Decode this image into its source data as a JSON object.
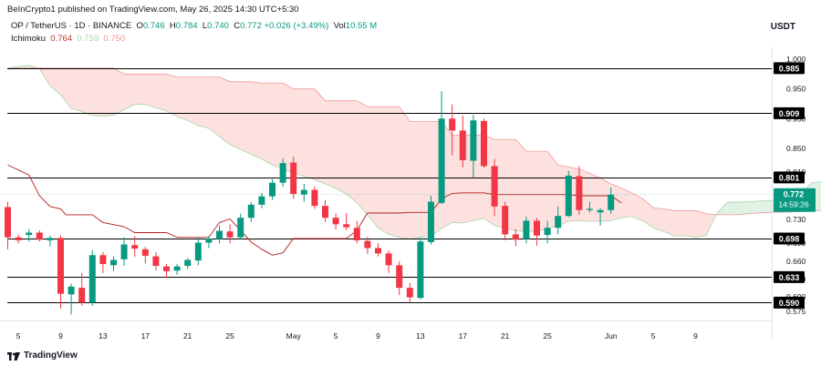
{
  "header": {
    "published": "BeInCrypto1 published on TradingView.com, May 26, 2025 14:30 UTC+5:30",
    "currency": "USDT",
    "symbol": "OP / TetherUS · 1D · BINANCE",
    "ohlc": [
      {
        "key": "O",
        "value": "0.746"
      },
      {
        "key": "H",
        "value": "0.784"
      },
      {
        "key": "L",
        "value": "0.740"
      },
      {
        "key": "C",
        "value": "0.772"
      }
    ],
    "change": "+0.026 (+3.49%)",
    "vol_label": "Vol",
    "vol_value": "10.55 M",
    "ichimoku_label": "Ichimoku",
    "ichimoku_values": [
      "0.764",
      "0.759",
      "0.750"
    ]
  },
  "footer": {
    "brand": "TradingView"
  },
  "colors": {
    "up": "#089981",
    "down": "#f23645",
    "cloud_bear": "#fde1df",
    "cloud_bull": "#dff2e4",
    "span_a": "#a5d6a7",
    "span_b": "#ef9a9a",
    "base_line": "#b71c1c",
    "hline": "#000000"
  },
  "chart_data": {
    "type": "candlestick",
    "y_range": [
      0.56,
      1.02
    ],
    "y_ticks": [
      "1.000",
      "0.950",
      "0.900",
      "0.850",
      "0.810",
      "0.770",
      "0.730",
      "0.690",
      "0.660",
      "0.630",
      "0.600",
      "0.575"
    ],
    "x_ticks": [
      "5",
      "9",
      "13",
      "17",
      "21",
      "25",
      "May",
      "5",
      "9",
      "13",
      "17",
      "21",
      "25",
      "Jun",
      "5",
      "9"
    ],
    "levels": [
      {
        "label": "0.985",
        "value": 0.985
      },
      {
        "label": "0.909",
        "value": 0.909
      },
      {
        "label": "0.801",
        "value": 0.801
      },
      {
        "label": "0.698",
        "value": 0.698
      },
      {
        "label": "0.633",
        "value": 0.633
      },
      {
        "label": "0.590",
        "value": 0.59
      }
    ],
    "last_price": {
      "value": 0.772,
      "label": "0.772",
      "countdown": "14:59:26"
    },
    "candles": [
      {
        "o": 0.751,
        "h": 0.76,
        "l": 0.68,
        "c": 0.7
      },
      {
        "o": 0.7,
        "h": 0.705,
        "l": 0.69,
        "c": 0.695
      },
      {
        "o": 0.704,
        "h": 0.714,
        "l": 0.693,
        "c": 0.708
      },
      {
        "o": 0.708,
        "h": 0.712,
        "l": 0.693,
        "c": 0.696
      },
      {
        "o": 0.695,
        "h": 0.703,
        "l": 0.685,
        "c": 0.699
      },
      {
        "o": 0.699,
        "h": 0.703,
        "l": 0.58,
        "c": 0.605
      },
      {
        "o": 0.604,
        "h": 0.622,
        "l": 0.57,
        "c": 0.617
      },
      {
        "o": 0.615,
        "h": 0.64,
        "l": 0.585,
        "c": 0.59
      },
      {
        "o": 0.59,
        "h": 0.678,
        "l": 0.585,
        "c": 0.67
      },
      {
        "o": 0.67,
        "h": 0.675,
        "l": 0.64,
        "c": 0.655
      },
      {
        "o": 0.653,
        "h": 0.668,
        "l": 0.643,
        "c": 0.662
      },
      {
        "o": 0.663,
        "h": 0.7,
        "l": 0.652,
        "c": 0.688
      },
      {
        "o": 0.687,
        "h": 0.702,
        "l": 0.667,
        "c": 0.681
      },
      {
        "o": 0.68,
        "h": 0.684,
        "l": 0.656,
        "c": 0.669
      },
      {
        "o": 0.668,
        "h": 0.675,
        "l": 0.644,
        "c": 0.652
      },
      {
        "o": 0.651,
        "h": 0.655,
        "l": 0.632,
        "c": 0.643
      },
      {
        "o": 0.644,
        "h": 0.655,
        "l": 0.637,
        "c": 0.651
      },
      {
        "o": 0.652,
        "h": 0.665,
        "l": 0.647,
        "c": 0.662
      },
      {
        "o": 0.661,
        "h": 0.7,
        "l": 0.653,
        "c": 0.691
      },
      {
        "o": 0.691,
        "h": 0.702,
        "l": 0.682,
        "c": 0.698
      },
      {
        "o": 0.697,
        "h": 0.72,
        "l": 0.69,
        "c": 0.711
      },
      {
        "o": 0.71,
        "h": 0.722,
        "l": 0.69,
        "c": 0.7
      },
      {
        "o": 0.7,
        "h": 0.74,
        "l": 0.697,
        "c": 0.733
      },
      {
        "o": 0.733,
        "h": 0.76,
        "l": 0.726,
        "c": 0.755
      },
      {
        "o": 0.755,
        "h": 0.775,
        "l": 0.749,
        "c": 0.769
      },
      {
        "o": 0.769,
        "h": 0.798,
        "l": 0.763,
        "c": 0.792
      },
      {
        "o": 0.792,
        "h": 0.833,
        "l": 0.785,
        "c": 0.825
      },
      {
        "o": 0.826,
        "h": 0.836,
        "l": 0.765,
        "c": 0.773
      },
      {
        "o": 0.772,
        "h": 0.79,
        "l": 0.76,
        "c": 0.78
      },
      {
        "o": 0.78,
        "h": 0.786,
        "l": 0.748,
        "c": 0.753
      },
      {
        "o": 0.753,
        "h": 0.763,
        "l": 0.726,
        "c": 0.733
      },
      {
        "o": 0.733,
        "h": 0.74,
        "l": 0.713,
        "c": 0.722
      },
      {
        "o": 0.722,
        "h": 0.741,
        "l": 0.712,
        "c": 0.717
      },
      {
        "o": 0.716,
        "h": 0.728,
        "l": 0.69,
        "c": 0.695
      },
      {
        "o": 0.694,
        "h": 0.701,
        "l": 0.672,
        "c": 0.682
      },
      {
        "o": 0.682,
        "h": 0.69,
        "l": 0.668,
        "c": 0.673
      },
      {
        "o": 0.673,
        "h": 0.678,
        "l": 0.64,
        "c": 0.653
      },
      {
        "o": 0.653,
        "h": 0.66,
        "l": 0.603,
        "c": 0.615
      },
      {
        "o": 0.615,
        "h": 0.623,
        "l": 0.59,
        "c": 0.599
      },
      {
        "o": 0.598,
        "h": 0.7,
        "l": 0.596,
        "c": 0.693
      },
      {
        "o": 0.692,
        "h": 0.77,
        "l": 0.688,
        "c": 0.76
      },
      {
        "o": 0.758,
        "h": 0.946,
        "l": 0.756,
        "c": 0.9
      },
      {
        "o": 0.9,
        "h": 0.924,
        "l": 0.838,
        "c": 0.88
      },
      {
        "o": 0.88,
        "h": 0.905,
        "l": 0.818,
        "c": 0.83
      },
      {
        "o": 0.829,
        "h": 0.906,
        "l": 0.8,
        "c": 0.897
      },
      {
        "o": 0.896,
        "h": 0.9,
        "l": 0.817,
        "c": 0.82
      },
      {
        "o": 0.82,
        "h": 0.832,
        "l": 0.736,
        "c": 0.752
      },
      {
        "o": 0.753,
        "h": 0.76,
        "l": 0.695,
        "c": 0.705
      },
      {
        "o": 0.705,
        "h": 0.714,
        "l": 0.685,
        "c": 0.696
      },
      {
        "o": 0.697,
        "h": 0.735,
        "l": 0.69,
        "c": 0.728
      },
      {
        "o": 0.728,
        "h": 0.733,
        "l": 0.686,
        "c": 0.703
      },
      {
        "o": 0.704,
        "h": 0.728,
        "l": 0.69,
        "c": 0.716
      },
      {
        "o": 0.716,
        "h": 0.752,
        "l": 0.705,
        "c": 0.736
      },
      {
        "o": 0.736,
        "h": 0.812,
        "l": 0.734,
        "c": 0.804
      },
      {
        "o": 0.803,
        "h": 0.82,
        "l": 0.738,
        "c": 0.746
      },
      {
        "o": 0.746,
        "h": 0.76,
        "l": 0.742,
        "c": 0.748
      },
      {
        "o": 0.742,
        "h": 0.749,
        "l": 0.72,
        "c": 0.746
      },
      {
        "o": 0.746,
        "h": 0.784,
        "l": 0.74,
        "c": 0.772
      }
    ],
    "base_line": [
      [
        0,
        0.822
      ],
      [
        2,
        0.805
      ],
      [
        3,
        0.77
      ],
      [
        4,
        0.752
      ],
      [
        5,
        0.748
      ],
      [
        5.5,
        0.738
      ],
      [
        8,
        0.738
      ],
      [
        9,
        0.725
      ],
      [
        11,
        0.718
      ],
      [
        12,
        0.708
      ],
      [
        15,
        0.708
      ],
      [
        16,
        0.7
      ],
      [
        19,
        0.7
      ],
      [
        20,
        0.725
      ],
      [
        21,
        0.731
      ],
      [
        22,
        0.712
      ],
      [
        23,
        0.692
      ],
      [
        24,
        0.68
      ],
      [
        25,
        0.67
      ],
      [
        26,
        0.674
      ],
      [
        27,
        0.698
      ],
      [
        32,
        0.698
      ],
      [
        33,
        0.712
      ],
      [
        34,
        0.741
      ],
      [
        37,
        0.741
      ],
      [
        38,
        0.742
      ],
      [
        40,
        0.742
      ],
      [
        41,
        0.765
      ],
      [
        42,
        0.774
      ],
      [
        43,
        0.775
      ],
      [
        45,
        0.775
      ],
      [
        46,
        0.772
      ],
      [
        53,
        0.772
      ],
      [
        54,
        0.77
      ],
      [
        57,
        0.77
      ],
      [
        58,
        0.758
      ]
    ],
    "span_a": [
      [
        0,
        0.985
      ],
      [
        2,
        0.99
      ],
      [
        3,
        0.984
      ],
      [
        4,
        0.955
      ],
      [
        5,
        0.94
      ],
      [
        6,
        0.917
      ],
      [
        7,
        0.912
      ],
      [
        8,
        0.905
      ],
      [
        9,
        0.904
      ],
      [
        10,
        0.906
      ],
      [
        11,
        0.915
      ],
      [
        12,
        0.924
      ],
      [
        13,
        0.924
      ],
      [
        14,
        0.918
      ],
      [
        15,
        0.913
      ],
      [
        16,
        0.903
      ],
      [
        17,
        0.897
      ],
      [
        18,
        0.888
      ],
      [
        19,
        0.884
      ],
      [
        20,
        0.87
      ],
      [
        21,
        0.856
      ],
      [
        22,
        0.848
      ],
      [
        23,
        0.84
      ],
      [
        24,
        0.832
      ],
      [
        25,
        0.822
      ],
      [
        26,
        0.815
      ],
      [
        27,
        0.808
      ],
      [
        28,
        0.803
      ],
      [
        29,
        0.797
      ],
      [
        30,
        0.79
      ],
      [
        31,
        0.783
      ],
      [
        32,
        0.773
      ],
      [
        33,
        0.758
      ],
      [
        34,
        0.738
      ],
      [
        35,
        0.716
      ],
      [
        36,
        0.705
      ],
      [
        37,
        0.7
      ],
      [
        38,
        0.697
      ],
      [
        39,
        0.7
      ],
      [
        40,
        0.702
      ],
      [
        41,
        0.715
      ],
      [
        42,
        0.725
      ],
      [
        43,
        0.724
      ],
      [
        44,
        0.728
      ],
      [
        45,
        0.732
      ],
      [
        46,
        0.72
      ],
      [
        47,
        0.715
      ],
      [
        48,
        0.711
      ],
      [
        49,
        0.71
      ],
      [
        50,
        0.71
      ],
      [
        51,
        0.714
      ],
      [
        52,
        0.72
      ],
      [
        53,
        0.727
      ],
      [
        54,
        0.728
      ],
      [
        55,
        0.727
      ],
      [
        56,
        0.727
      ],
      [
        57,
        0.728
      ],
      [
        58,
        0.733
      ],
      [
        59,
        0.735
      ],
      [
        60,
        0.728
      ],
      [
        61,
        0.716
      ],
      [
        62,
        0.71
      ],
      [
        63,
        0.702
      ],
      [
        64,
        0.703
      ],
      [
        65,
        0.7
      ],
      [
        66,
        0.703
      ],
      [
        67,
        0.74
      ],
      [
        68,
        0.759
      ],
      [
        69,
        0.759
      ],
      [
        70,
        0.76
      ],
      [
        71,
        0.761
      ],
      [
        72,
        0.762
      ],
      [
        73,
        0.764
      ],
      [
        74,
        0.768
      ],
      [
        75,
        0.775
      ],
      [
        76,
        0.792
      ],
      [
        77,
        0.794
      ],
      [
        78,
        0.79
      ]
    ],
    "span_b": [
      [
        0,
        0.985
      ],
      [
        4,
        0.985
      ],
      [
        5,
        0.985
      ],
      [
        10,
        0.985
      ],
      [
        11,
        0.975
      ],
      [
        15,
        0.975
      ],
      [
        16,
        0.97
      ],
      [
        20,
        0.97
      ],
      [
        21,
        0.962
      ],
      [
        23,
        0.962
      ],
      [
        24,
        0.96
      ],
      [
        26,
        0.96
      ],
      [
        27,
        0.95
      ],
      [
        29,
        0.95
      ],
      [
        30,
        0.93
      ],
      [
        33,
        0.93
      ],
      [
        34,
        0.92
      ],
      [
        37,
        0.92
      ],
      [
        38,
        0.895
      ],
      [
        41,
        0.895
      ],
      [
        42,
        0.872
      ],
      [
        45,
        0.872
      ],
      [
        46,
        0.865
      ],
      [
        48,
        0.865
      ],
      [
        49,
        0.845
      ],
      [
        51,
        0.845
      ],
      [
        52,
        0.822
      ],
      [
        54,
        0.815
      ],
      [
        55,
        0.808
      ],
      [
        56,
        0.8
      ],
      [
        57,
        0.79
      ],
      [
        58,
        0.783
      ],
      [
        59,
        0.775
      ],
      [
        60,
        0.765
      ],
      [
        61,
        0.75
      ],
      [
        62,
        0.748
      ],
      [
        63,
        0.745
      ],
      [
        64,
        0.745
      ],
      [
        65,
        0.745
      ],
      [
        66,
        0.74
      ],
      [
        67,
        0.738
      ],
      [
        69,
        0.738
      ],
      [
        70,
        0.74
      ],
      [
        72,
        0.742
      ],
      [
        74,
        0.743
      ],
      [
        76,
        0.745
      ],
      [
        78,
        0.745
      ]
    ]
  }
}
